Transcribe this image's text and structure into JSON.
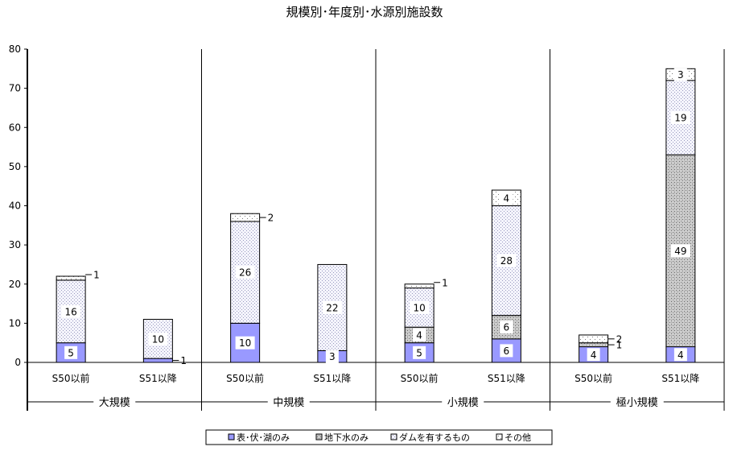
{
  "chart_data": {
    "type": "bar",
    "stacked": true,
    "title": "規模別･年度別･水源別施設数",
    "ylim": [
      0,
      80
    ],
    "yticks": [
      0,
      10,
      20,
      30,
      40,
      50,
      60,
      70,
      80
    ],
    "grid": false,
    "legend_position": "bottom",
    "groups": [
      "大規模",
      "中規模",
      "小規模",
      "極小規模"
    ],
    "categories": [
      "S50以前",
      "S51以降",
      "S50以前",
      "S51以降",
      "S50以前",
      "S51以降",
      "S50以前",
      "S51以降"
    ],
    "category_group": [
      0,
      0,
      1,
      1,
      2,
      2,
      3,
      3
    ],
    "series": [
      {
        "name": "表･伏･湖のみ",
        "values": [
          5,
          1,
          10,
          3,
          5,
          6,
          4,
          4
        ],
        "color": "#9999ff",
        "pattern": "solid"
      },
      {
        "name": "地下水のみ",
        "values": [
          0,
          0,
          0,
          0,
          4,
          6,
          1,
          49
        ],
        "color": "#c0c0c0",
        "pattern": "cross"
      },
      {
        "name": "ダムを有するもの",
        "values": [
          16,
          10,
          26,
          22,
          10,
          28,
          0,
          19
        ],
        "color": "#e8e8f8",
        "pattern": "fine"
      },
      {
        "name": "その他",
        "values": [
          1,
          0,
          2,
          0,
          1,
          4,
          2,
          3
        ],
        "color": "#ffffff",
        "pattern": "dots"
      }
    ],
    "data_labels": [
      [
        {
          "series": 0,
          "text": "5"
        },
        {
          "series": 2,
          "text": "16"
        },
        {
          "series": 3,
          "text": "1"
        }
      ],
      [
        {
          "series": 0,
          "text": "1"
        },
        {
          "series": 2,
          "text": "10"
        }
      ],
      [
        {
          "series": 0,
          "text": "10"
        },
        {
          "series": 2,
          "text": "26"
        },
        {
          "series": 3,
          "text": "2"
        }
      ],
      [
        {
          "series": 0,
          "text": "3"
        },
        {
          "series": 2,
          "text": "22"
        }
      ],
      [
        {
          "series": 0,
          "text": "5"
        },
        {
          "series": 1,
          "text": "4"
        },
        {
          "series": 2,
          "text": "10"
        },
        {
          "series": 3,
          "text": "1"
        }
      ],
      [
        {
          "series": 0,
          "text": "6"
        },
        {
          "series": 1,
          "text": "6"
        },
        {
          "series": 2,
          "text": "28"
        },
        {
          "series": 3,
          "text": "4"
        }
      ],
      [
        {
          "series": 0,
          "text": "4"
        },
        {
          "series": 1,
          "text": "1"
        },
        {
          "series": 3,
          "text": "2"
        }
      ],
      [
        {
          "series": 0,
          "text": "4"
        },
        {
          "series": 1,
          "text": "49"
        },
        {
          "series": 2,
          "text": "19"
        },
        {
          "series": 3,
          "text": "3"
        }
      ]
    ]
  }
}
